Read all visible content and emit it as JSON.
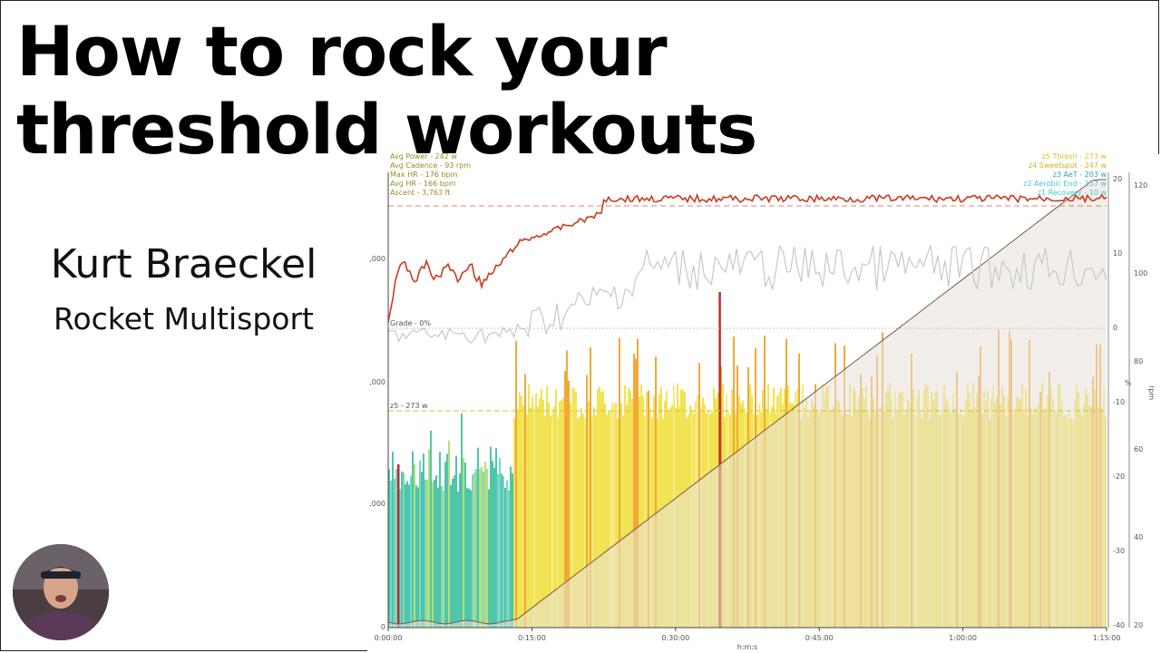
{
  "slide": {
    "title_line1": "How to rock your",
    "title_line2": "threshold workouts",
    "presenter_name": "Kurt Braeckel",
    "presenter_org": "Rocket Multisport"
  },
  "stats": [
    "Avg Power - 242 w",
    "Avg Cadence - 93 rpm",
    "Max HR - 176 bpm",
    "Avg HR - 166 bpm",
    "Ascent - 3,763 ft"
  ],
  "zones": [
    {
      "label": "z5 Thresh - 273 w",
      "color": "#d8c428"
    },
    {
      "label": "z4 Sweetspot - 247 w",
      "color": "#c9b62a"
    },
    {
      "label": "z3 AeT - 203 w",
      "color": "#2aa8a0"
    },
    {
      "label": "z2 Aerobic End - 157 w",
      "color": "#44c6d8"
    },
    {
      "label": "z1 Recovery - 10 w",
      "color": "#44c6d8"
    }
  ],
  "chart_data": {
    "type": "line",
    "xlabel": "h:m:s",
    "x_ticks": [
      "0:00:00",
      "0:15:00",
      "0:30:00",
      "0:45:00",
      "1:00:00",
      "1:15:00"
    ],
    "left_ticks": [
      ",000",
      ",000",
      ",000",
      "0"
    ],
    "grade_axis_ticks": [
      "20",
      "10",
      "0",
      "-10",
      "-20",
      "-30",
      "-40"
    ],
    "grade_axis_label": "%",
    "rpm_axis_ticks": [
      "120",
      "100",
      "80",
      "60",
      "40",
      "20"
    ],
    "rpm_axis_label": "rpm",
    "grade_label": "Grade - 0%",
    "power_label": "z5 - 273 w",
    "colors": {
      "hr": "#cc3a1e",
      "cadence": "#c8c8c8",
      "elevation": "#7a5a50",
      "elevation_fill": "#e8e2d8",
      "power_low": "#3cc0a0",
      "power_mid": "#f0e040",
      "power_high": "#f0a020"
    }
  }
}
